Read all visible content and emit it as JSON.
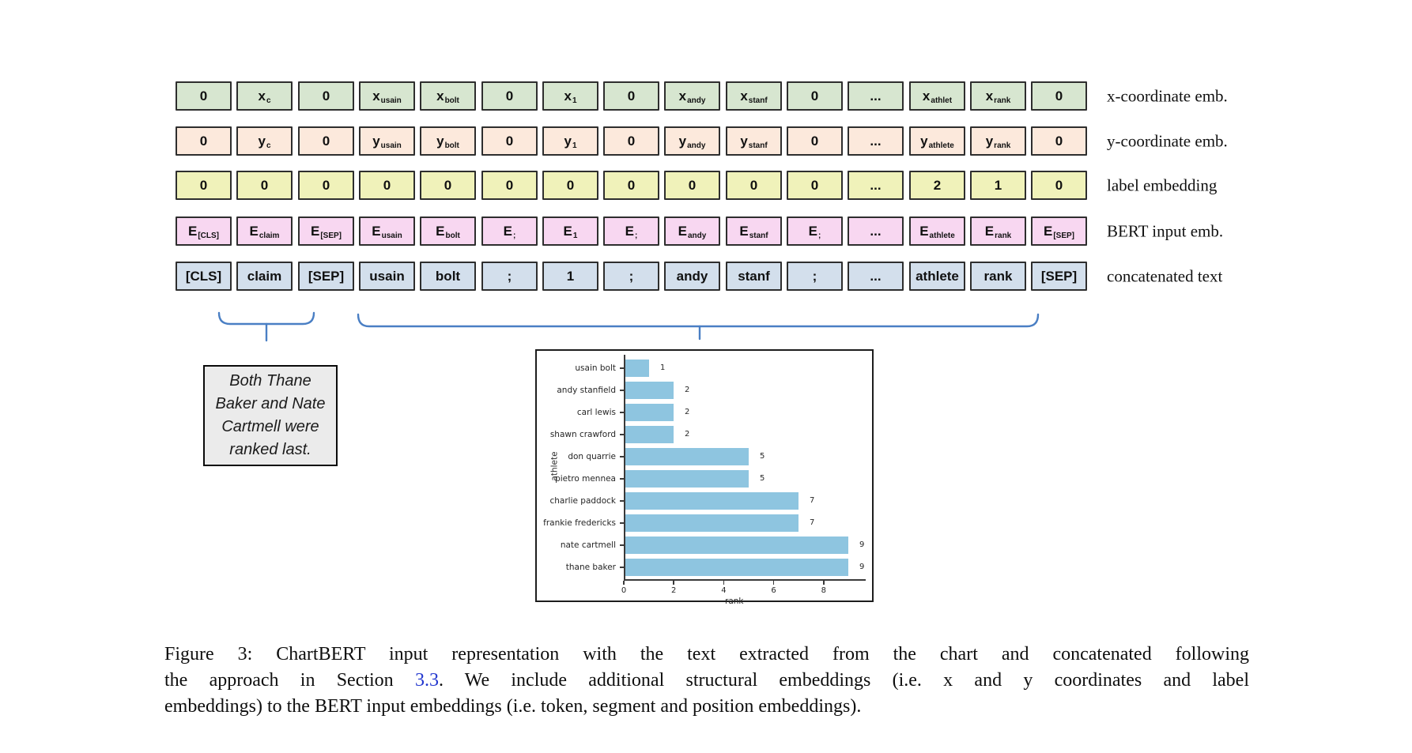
{
  "figure": {
    "grid": {
      "rows": [
        {
          "id": "x-coordinate",
          "label": "x-coordinate emb.",
          "box_color": "#d7e6d0",
          "cells": [
            {
              "t": "0"
            },
            {
              "t": "x",
              "s": "c"
            },
            {
              "t": "0"
            },
            {
              "t": "x",
              "s": "usain"
            },
            {
              "t": "x",
              "s": "bolt"
            },
            {
              "t": "0"
            },
            {
              "t": "x",
              "s": "1"
            },
            {
              "t": "0"
            },
            {
              "t": "x",
              "s": "andy"
            },
            {
              "t": "x",
              "s": "stanf"
            },
            {
              "t": "0"
            },
            {
              "t": "..."
            },
            {
              "t": "x",
              "s": "athlet"
            },
            {
              "t": "x",
              "s": "rank"
            },
            {
              "t": "0"
            }
          ]
        },
        {
          "id": "y-coordinate",
          "label": "y-coordinate emb.",
          "box_color": "#fce9dc",
          "cells": [
            {
              "t": "0"
            },
            {
              "t": "y",
              "s": "c"
            },
            {
              "t": "0"
            },
            {
              "t": "y",
              "s": "usain"
            },
            {
              "t": "y",
              "s": "bolt"
            },
            {
              "t": "0"
            },
            {
              "t": "y",
              "s": "1"
            },
            {
              "t": "0"
            },
            {
              "t": "y",
              "s": "andy"
            },
            {
              "t": "y",
              "s": "stanf"
            },
            {
              "t": "0"
            },
            {
              "t": "..."
            },
            {
              "t": "y",
              "s": "athlete"
            },
            {
              "t": "y",
              "s": "rank"
            },
            {
              "t": "0"
            }
          ]
        },
        {
          "id": "label-embedding",
          "label": "label embedding",
          "box_color": "#f0f2ba",
          "cells": [
            {
              "t": "0"
            },
            {
              "t": "0"
            },
            {
              "t": "0"
            },
            {
              "t": "0"
            },
            {
              "t": "0"
            },
            {
              "t": "0"
            },
            {
              "t": "0"
            },
            {
              "t": "0"
            },
            {
              "t": "0"
            },
            {
              "t": "0"
            },
            {
              "t": "0"
            },
            {
              "t": "..."
            },
            {
              "t": "2"
            },
            {
              "t": "1"
            },
            {
              "t": "0"
            }
          ]
        },
        {
          "id": "bert-input",
          "label": "BERT input emb.",
          "box_color": "#f8d7f1",
          "cells": [
            {
              "t": "E",
              "s": "[CLS]"
            },
            {
              "t": "E",
              "s": "claim"
            },
            {
              "t": "E",
              "s": "[SEP]"
            },
            {
              "t": "E",
              "s": "usain"
            },
            {
              "t": "E",
              "s": "bolt"
            },
            {
              "t": "E",
              "s": ";"
            },
            {
              "t": "E",
              "s": "1"
            },
            {
              "t": "E",
              "s": ";"
            },
            {
              "t": "E",
              "s": "andy"
            },
            {
              "t": "E",
              "s": "stanf"
            },
            {
              "t": "E",
              "s": ";"
            },
            {
              "t": "..."
            },
            {
              "t": "E",
              "s": "athlete"
            },
            {
              "t": "E",
              "s": "rank"
            },
            {
              "t": "E",
              "s": "[SEP]"
            }
          ]
        },
        {
          "id": "concatenated-text",
          "label": "concatenated text",
          "box_color": "#d3dfec",
          "cells": [
            {
              "t": "[CLS]"
            },
            {
              "t": "claim"
            },
            {
              "t": "[SEP]"
            },
            {
              "t": "usain"
            },
            {
              "t": "bolt"
            },
            {
              "t": ";"
            },
            {
              "t": "1"
            },
            {
              "t": ";"
            },
            {
              "t": "andy"
            },
            {
              "t": "stanf"
            },
            {
              "t": ";"
            },
            {
              "t": "..."
            },
            {
              "t": "athlete"
            },
            {
              "t": "rank"
            },
            {
              "t": "[SEP]"
            }
          ]
        }
      ]
    },
    "claim_box": {
      "text": "Both Thane\nBaker and Nate\nCartmell were\nranked last."
    },
    "brace_color": "#4a7fc4",
    "caption": {
      "line1": "Figure 3:  ChartBERT input representation with the text extracted from the chart and concatenated following",
      "line2_pre": "the approach in Section ",
      "link": "3.3",
      "link_color": "#2438cf",
      "line2_post": ".  We include additional structural embeddings (i.e.  x and y coordinates and label",
      "line3": "embeddings) to the BERT input embeddings (i.e. token, segment and position embeddings)."
    }
  },
  "chart_data": {
    "type": "bar",
    "orientation": "horizontal",
    "title": "",
    "categories": [
      "usain bolt",
      "andy stanfield",
      "carl lewis",
      "shawn crawford",
      "don quarrie",
      "pietro mennea",
      "charlie paddock",
      "frankie fredericks",
      "nate cartmell",
      "thane baker"
    ],
    "values": [
      1,
      2,
      2,
      2,
      5,
      5,
      7,
      7,
      9,
      9
    ],
    "xlabel": "rank",
    "ylabel": "athlete",
    "xticks": [
      0,
      2,
      4,
      6,
      8
    ],
    "xlim": [
      0,
      10
    ],
    "grid": false,
    "value_labels_shown": true,
    "bar_color": "#8ec5e0"
  }
}
